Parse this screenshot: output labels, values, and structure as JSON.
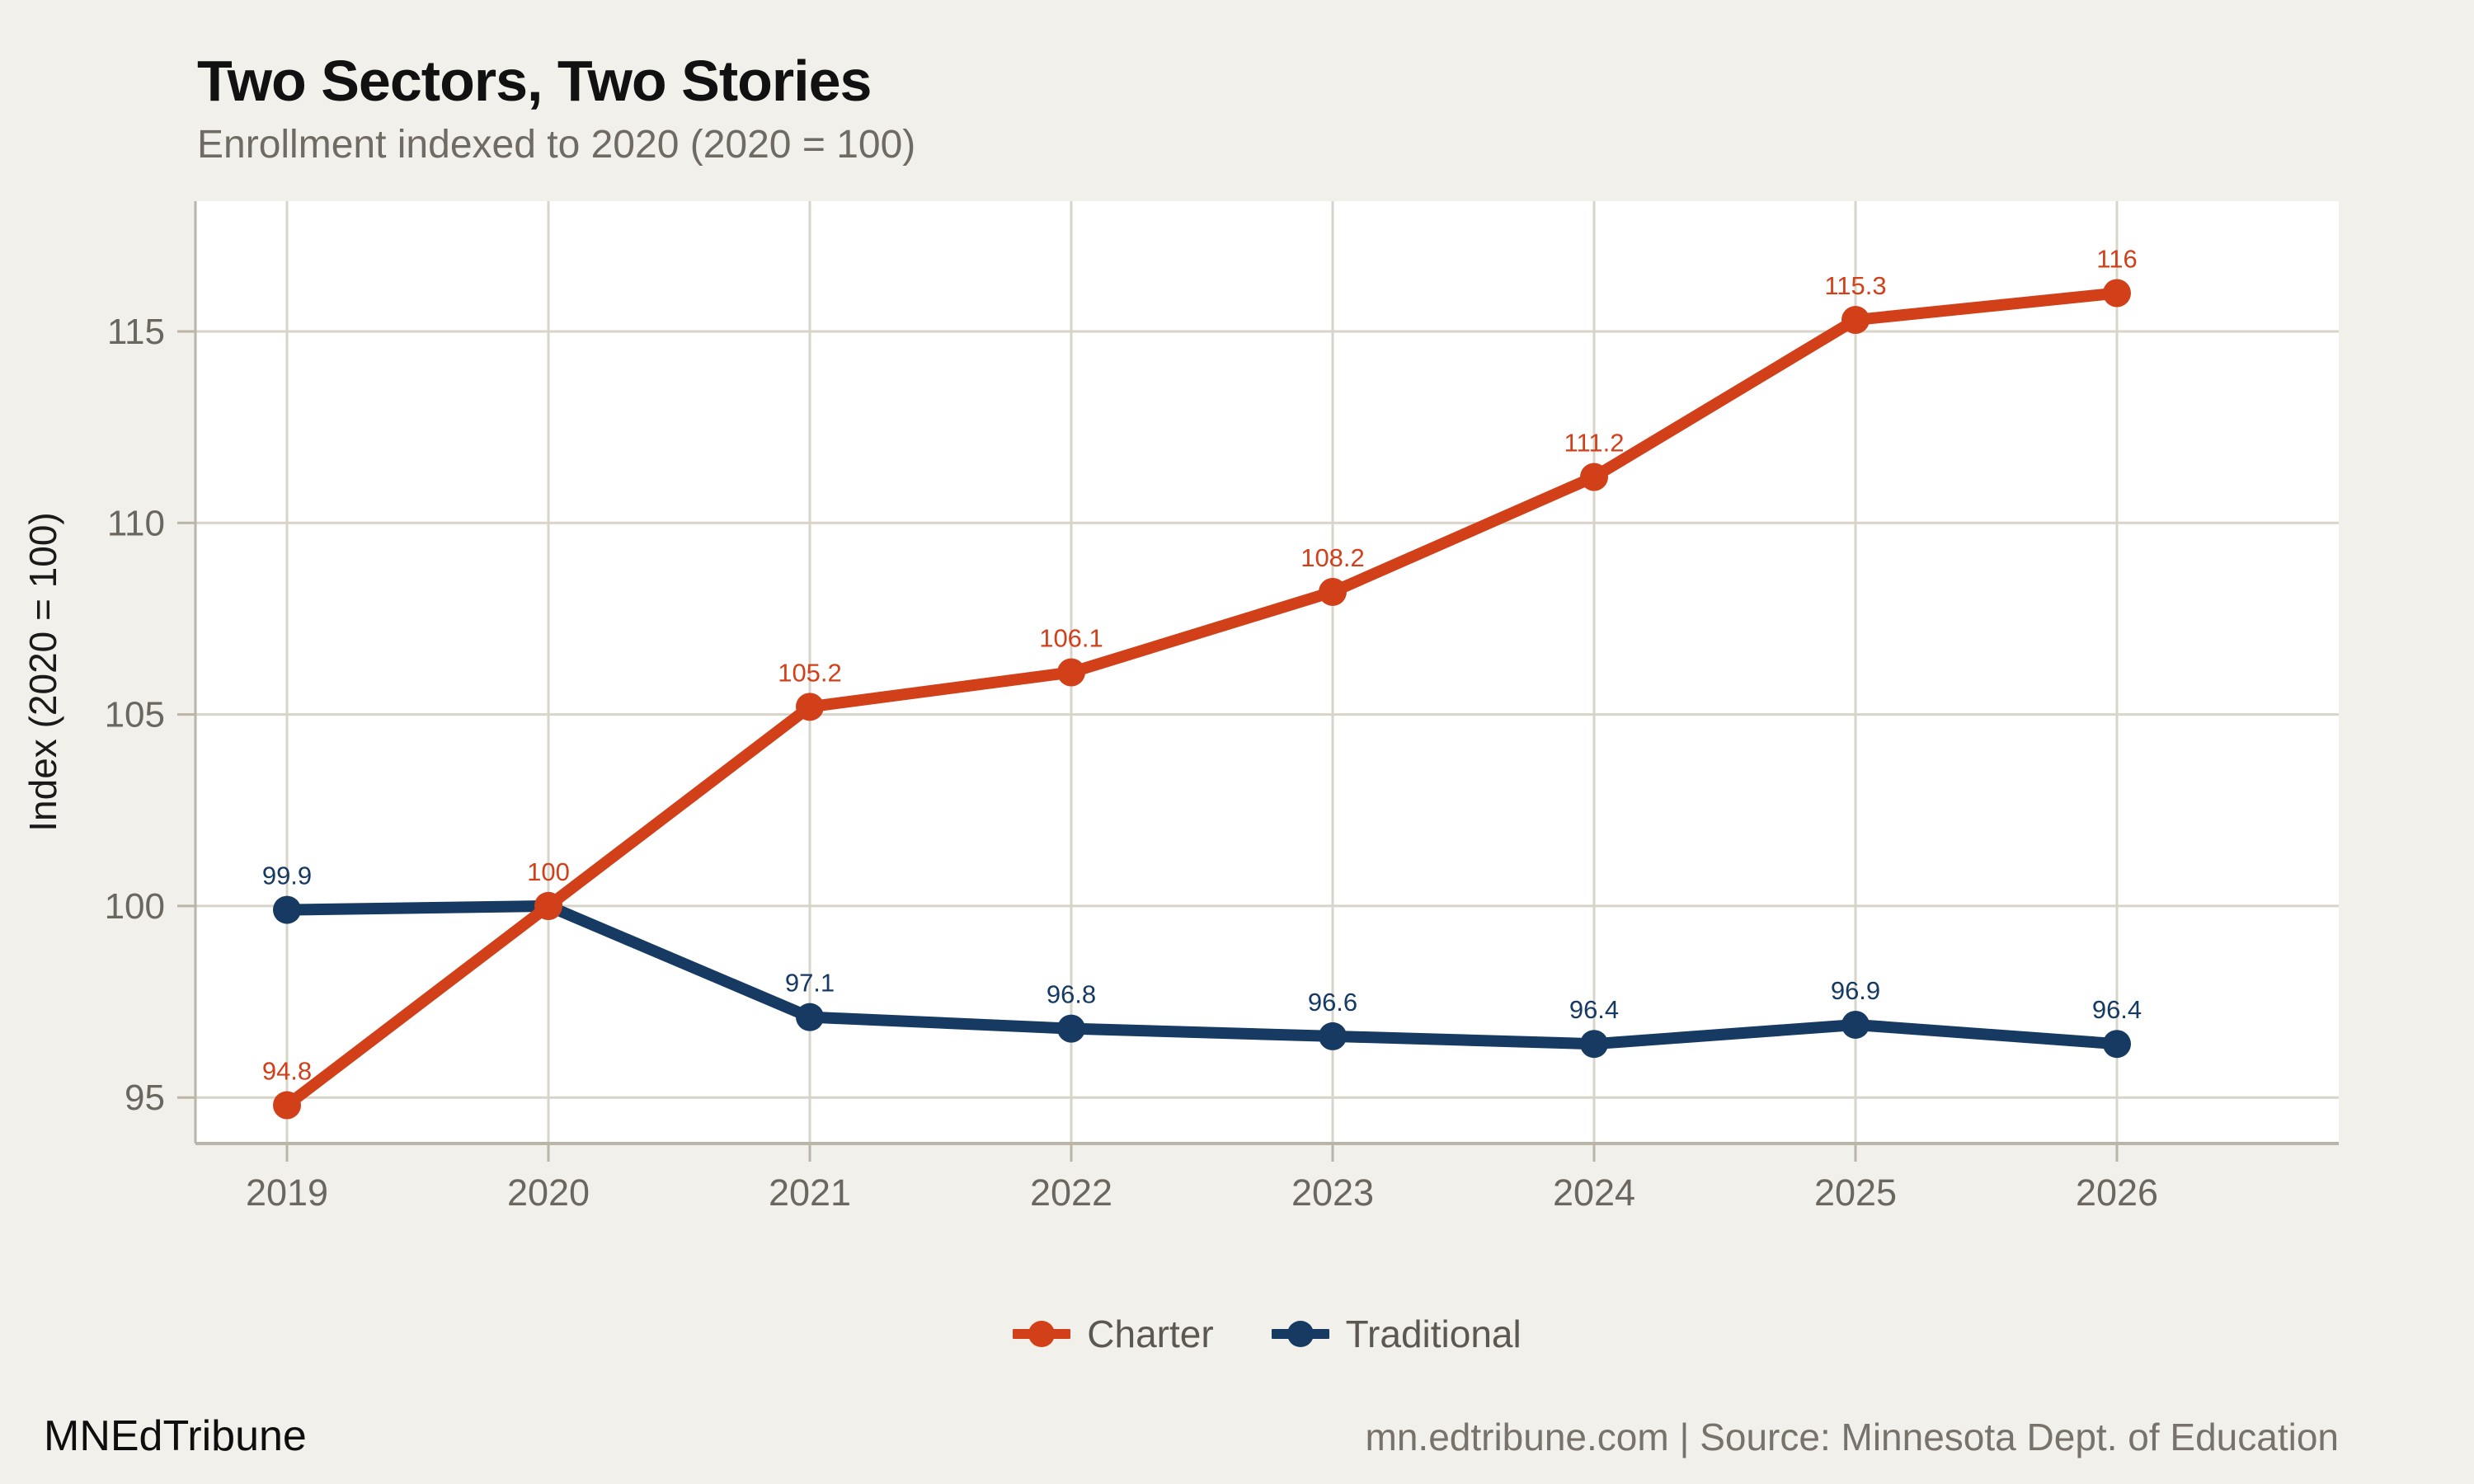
{
  "header": {
    "title": "Two Sectors, Two Stories",
    "subtitle": "Enrollment indexed to 2020 (2020 = 100)"
  },
  "chart_data": {
    "type": "line",
    "title": "Two Sectors, Two Stories",
    "subtitle": "Enrollment indexed to 2020 (2020 = 100)",
    "x": [
      2019,
      2020,
      2021,
      2022,
      2023,
      2024,
      2025,
      2026
    ],
    "series": [
      {
        "name": "Charter",
        "color": "#D2401A",
        "values": [
          94.8,
          100,
          105.2,
          106.1,
          108.2,
          111.2,
          115.3,
          116
        ],
        "point_labels": [
          "94.8",
          "100",
          "105.2",
          "106.1",
          "108.2",
          "111.2",
          "115.3",
          "116"
        ]
      },
      {
        "name": "Traditional",
        "color": "#163A62",
        "values": [
          99.9,
          100,
          97.1,
          96.8,
          96.6,
          96.4,
          96.9,
          96.4
        ],
        "point_labels": [
          "99.9",
          null,
          "97.1",
          "96.8",
          "96.6",
          "96.4",
          "96.9",
          "96.4"
        ]
      }
    ],
    "xlabel": "",
    "ylabel": "Index (2020 = 100)",
    "yticks": [
      95,
      100,
      105,
      110,
      115
    ],
    "ylim": [
      93.8,
      118.4
    ],
    "grid": true,
    "legend_position": "bottom"
  },
  "footer": {
    "brand": "MNEdTribune",
    "source": "mn.edtribune.com | Source: Minnesota Dept. of Education"
  },
  "colors": {
    "background": "#F2F0EA",
    "plot_background": "#FFFFFF",
    "grid": "#D8D4C8",
    "axis": "#BBB5A8",
    "tick_text": "#6B675F",
    "charter": "#D2401A",
    "traditional": "#163A62"
  }
}
